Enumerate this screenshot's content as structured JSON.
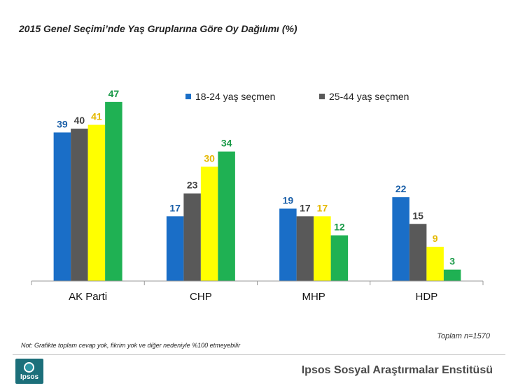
{
  "title": "2015 Genel Seçimi’nde Yaş Gruplarına Göre Oy Dağılımı (%)",
  "note": "Not: Grafikte toplam cevap yok, fikrim yok ve diğer nedeniyle %100 etmeyebilir",
  "total": "Toplam n=1570",
  "organization": "Ipsos Sosyal Araştırmalar Enstitüsü",
  "logo_text": "Ipsos",
  "chart_data": {
    "type": "bar",
    "categories": [
      "AK Parti",
      "CHP",
      "MHP",
      "HDP"
    ],
    "series": [
      {
        "name": "18-24 yaş seçmen",
        "values": [
          39,
          17,
          19,
          22
        ],
        "color": "#1a6ec7",
        "label_color": "#1a5fa8"
      },
      {
        "name": "25-44 yaş seçmen",
        "values": [
          40,
          23,
          17,
          15
        ],
        "color": "#595959",
        "label_color": "#404040"
      },
      {
        "name": "",
        "values": [
          41,
          30,
          17,
          9
        ],
        "color": "#ffff00",
        "label_color": "#e5b800"
      },
      {
        "name": "",
        "values": [
          47,
          34,
          12,
          3
        ],
        "color": "#1fb153",
        "label_color": "#1a9a48"
      }
    ],
    "ylim": [
      0,
      50
    ],
    "legend_position": "top-center",
    "grid": false
  }
}
